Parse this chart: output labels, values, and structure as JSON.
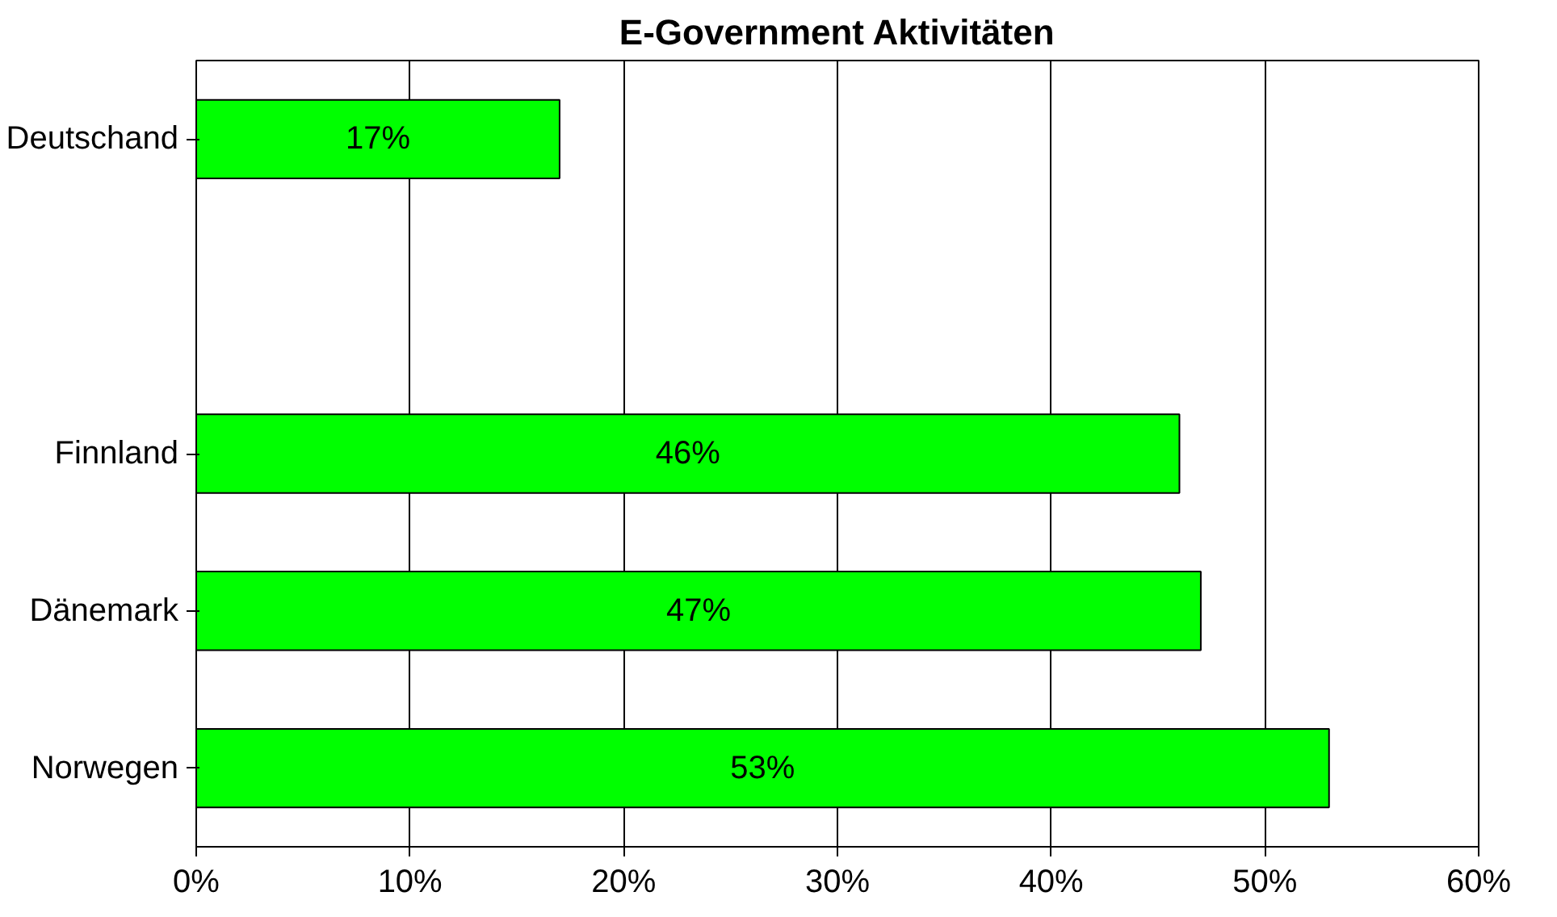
{
  "chart_data": {
    "type": "bar",
    "orientation": "horizontal",
    "title": "E-Government Aktivitäten",
    "categories": [
      "Deutschand",
      null,
      "Finnland",
      "Dänemark",
      "Norwegen"
    ],
    "values": [
      17,
      null,
      46,
      47,
      53
    ],
    "value_labels": [
      "17%",
      null,
      "46%",
      "47%",
      "53%"
    ],
    "color": "#00ff00",
    "xlim": [
      0,
      60
    ],
    "xticks": [
      {
        "value": 0,
        "label": "0%"
      },
      {
        "value": 10,
        "label": "10%"
      },
      {
        "value": 20,
        "label": "20%"
      },
      {
        "value": 30,
        "label": "30%"
      },
      {
        "value": 40,
        "label": "40%"
      },
      {
        "value": 50,
        "label": "50%"
      },
      {
        "value": 60,
        "label": "60%"
      }
    ],
    "grid": "x"
  }
}
